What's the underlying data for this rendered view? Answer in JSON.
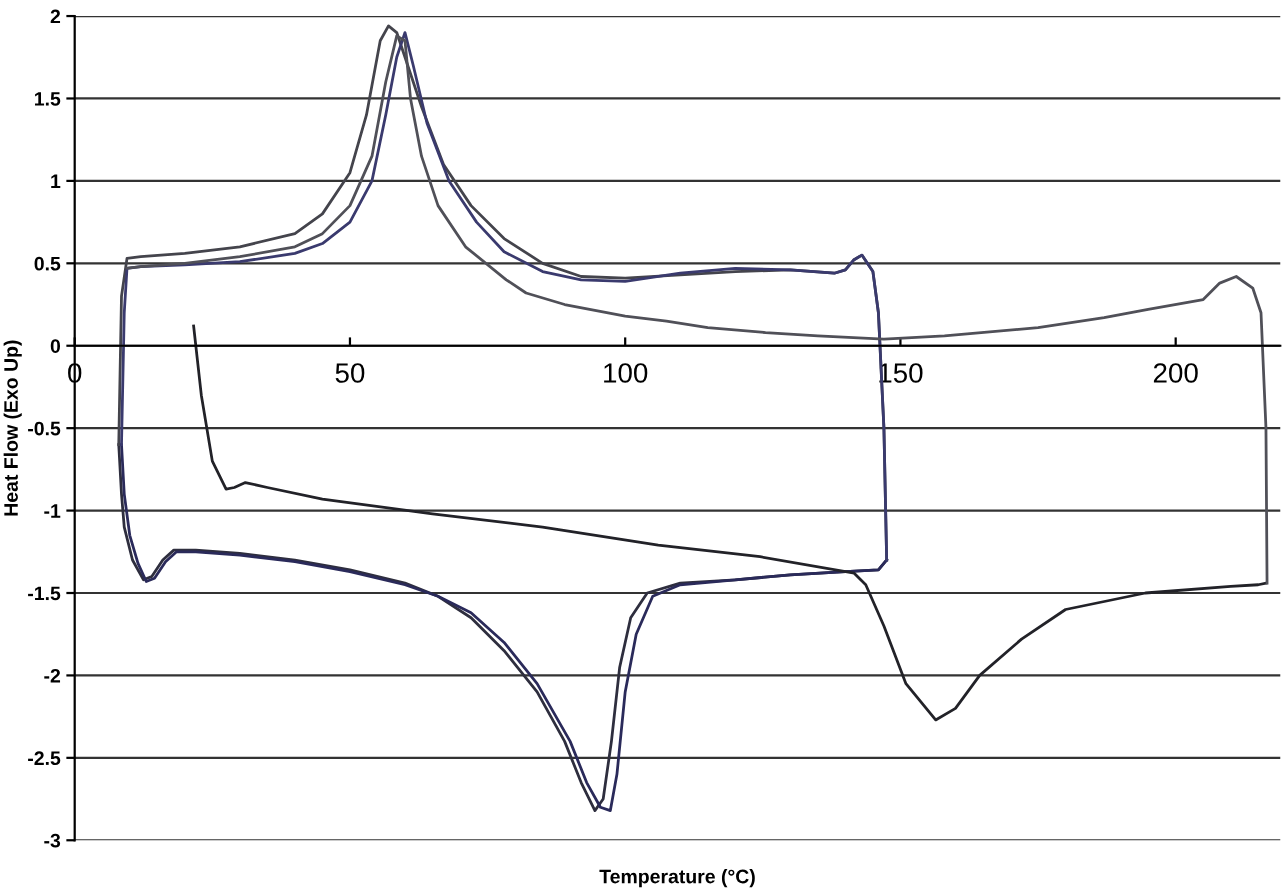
{
  "chart_data": {
    "type": "line",
    "xlabel": "Temperature (°C)",
    "ylabel": "Heat Flow (Exo Up)",
    "xlim": [
      0,
      219
    ],
    "xticks": [
      0,
      50,
      100,
      150,
      200
    ],
    "ylim": [
      -3,
      2
    ],
    "yticks": [
      -3,
      -2.5,
      -2,
      -1.5,
      -1,
      -0.5,
      0,
      0.5,
      1,
      1.5,
      2
    ],
    "grid": "y",
    "marker": "none",
    "line_style": "solid",
    "series": [
      {
        "color": "#2e2e3e",
        "x": [
          8,
          8.5,
          9,
          10.5,
          12.5,
          14,
          16,
          18,
          22,
          30,
          40,
          50,
          60,
          66,
          72,
          78,
          84,
          89,
          92,
          94.5,
          96,
          97.5,
          99,
          101,
          104,
          110,
          120,
          130,
          140,
          146,
          147.5
        ],
        "values": [
          -0.6,
          -0.9,
          -1.1,
          -1.3,
          -1.42,
          -1.4,
          -1.3,
          -1.24,
          -1.24,
          -1.26,
          -1.3,
          -1.36,
          -1.44,
          -1.52,
          -1.65,
          -1.85,
          -2.1,
          -2.4,
          -2.65,
          -2.82,
          -2.75,
          -2.4,
          -1.95,
          -1.65,
          -1.5,
          -1.44,
          -1.42,
          -1.39,
          -1.37,
          -1.36,
          -1.3
        ]
      },
      {
        "color": "#44444c",
        "x": [
          147.5,
          147,
          146,
          145,
          143,
          141.5,
          140,
          138,
          130,
          120,
          110,
          100,
          92,
          85,
          78,
          72,
          67,
          63,
          60,
          58.5,
          57,
          55.5,
          53,
          50,
          45,
          40,
          30,
          20,
          12,
          9.5,
          8.5,
          8
        ],
        "values": [
          -1.3,
          -0.5,
          0.2,
          0.45,
          0.55,
          0.52,
          0.46,
          0.44,
          0.46,
          0.45,
          0.43,
          0.41,
          0.42,
          0.5,
          0.65,
          0.85,
          1.1,
          1.45,
          1.75,
          1.9,
          1.94,
          1.85,
          1.4,
          1.05,
          0.8,
          0.68,
          0.6,
          0.56,
          0.54,
          0.53,
          0.3,
          -0.6
        ]
      },
      {
        "color": "#2a2a5a",
        "x": [
          8.5,
          9,
          10,
          11.5,
          13,
          14.5,
          16.5,
          18.5,
          22,
          30,
          40,
          50,
          60,
          66,
          72,
          78,
          84,
          90,
          93,
          95.5,
          97.3,
          98.5,
          100,
          102,
          105,
          110,
          120,
          130,
          140,
          146,
          147.5
        ],
        "values": [
          -0.6,
          -0.9,
          -1.15,
          -1.32,
          -1.43,
          -1.41,
          -1.31,
          -1.25,
          -1.25,
          -1.27,
          -1.31,
          -1.37,
          -1.45,
          -1.52,
          -1.62,
          -1.8,
          -2.05,
          -2.4,
          -2.65,
          -2.8,
          -2.82,
          -2.6,
          -2.1,
          -1.75,
          -1.52,
          -1.45,
          -1.42,
          -1.39,
          -1.37,
          -1.36,
          -1.3
        ]
      },
      {
        "color": "#3a3a6e",
        "x": [
          147.5,
          147,
          146,
          145,
          143,
          141.5,
          140,
          138,
          130,
          120,
          110,
          100,
          92,
          85,
          78,
          73,
          68,
          64,
          61.5,
          60,
          58.5,
          56.5,
          54,
          50,
          45,
          40,
          30,
          20,
          12,
          9.5,
          9,
          8.5
        ],
        "values": [
          -1.3,
          -0.5,
          0.2,
          0.45,
          0.55,
          0.52,
          0.46,
          0.44,
          0.46,
          0.47,
          0.44,
          0.39,
          0.4,
          0.45,
          0.57,
          0.75,
          1.0,
          1.35,
          1.7,
          1.9,
          1.75,
          1.4,
          1.0,
          0.75,
          0.62,
          0.56,
          0.51,
          0.49,
          0.48,
          0.47,
          0.2,
          -0.6
        ]
      },
      {
        "color": "#222228",
        "x": [
          21.6,
          23,
          25,
          27.5,
          29,
          31,
          35,
          45,
          65,
          85,
          106,
          124.5,
          141.6,
          143.7,
          147,
          151,
          156.4,
          160,
          164.4,
          172,
          180,
          194.5,
          210,
          215,
          216.4
        ],
        "values": [
          0.12,
          -0.3,
          -0.7,
          -0.87,
          -0.86,
          -0.83,
          -0.86,
          -0.93,
          -1.02,
          -1.1,
          -1.21,
          -1.28,
          -1.38,
          -1.45,
          -1.7,
          -2.05,
          -2.27,
          -2.2,
          -2.0,
          -1.78,
          -1.6,
          -1.5,
          -1.46,
          -1.45,
          -1.44
        ]
      },
      {
        "color": "#505058",
        "x": [
          216.6,
          216.4,
          215.5,
          214,
          211,
          208,
          205,
          195,
          187,
          175,
          158,
          147,
          135,
          125.5,
          115,
          107.5,
          100,
          89,
          82,
          78.4,
          71,
          66,
          63,
          61,
          60,
          58.5,
          56.5,
          54,
          50,
          45,
          40,
          30,
          20,
          12,
          9.5
        ],
        "values": [
          -1.44,
          -0.5,
          0.2,
          0.35,
          0.42,
          0.38,
          0.28,
          0.22,
          0.17,
          0.11,
          0.06,
          0.04,
          0.06,
          0.08,
          0.11,
          0.15,
          0.18,
          0.25,
          0.32,
          0.4,
          0.6,
          0.85,
          1.15,
          1.5,
          1.85,
          1.88,
          1.6,
          1.15,
          0.85,
          0.68,
          0.6,
          0.54,
          0.5,
          0.48,
          0.47
        ]
      }
    ]
  }
}
